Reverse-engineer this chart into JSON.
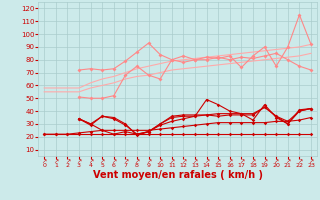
{
  "background_color": "#cceaea",
  "grid_color": "#aacccc",
  "xlabel": "Vent moyen/en rafales ( km/h )",
  "xlabel_color": "#cc0000",
  "xlabel_fontsize": 7,
  "yticks": [
    10,
    20,
    30,
    40,
    50,
    60,
    70,
    80,
    90,
    100,
    110,
    120
  ],
  "xticks": [
    0,
    1,
    2,
    3,
    4,
    5,
    6,
    7,
    8,
    9,
    10,
    11,
    12,
    13,
    14,
    15,
    16,
    17,
    18,
    19,
    20,
    21,
    22,
    23
  ],
  "xlim": [
    -0.5,
    23.5
  ],
  "ylim": [
    5,
    125
  ],
  "series": [
    {
      "x": [
        0,
        1,
        2,
        3,
        4,
        5,
        6,
        7,
        8,
        9,
        10,
        11,
        12,
        13,
        14,
        15,
        16,
        17,
        18,
        19,
        20,
        21,
        22,
        23
      ],
      "y": [
        55,
        55,
        55,
        55,
        58,
        60,
        62,
        65,
        67,
        68,
        70,
        72,
        73,
        74,
        75,
        76,
        77,
        78,
        79,
        80,
        81,
        82,
        83,
        85
      ],
      "color": "#ffaaaa",
      "linewidth": 0.8,
      "marker": null,
      "alpha": 1.0
    },
    {
      "x": [
        0,
        1,
        2,
        3,
        4,
        5,
        6,
        7,
        8,
        9,
        10,
        11,
        12,
        13,
        14,
        15,
        16,
        17,
        18,
        19,
        20,
        21,
        22,
        23
      ],
      "y": [
        58,
        58,
        58,
        58,
        62,
        65,
        67,
        70,
        73,
        75,
        77,
        79,
        80,
        81,
        82,
        83,
        84,
        85,
        86,
        87,
        88,
        89,
        90,
        92
      ],
      "color": "#ffaaaa",
      "linewidth": 0.8,
      "marker": null,
      "alpha": 1.0
    },
    {
      "x": [
        3,
        4,
        5,
        6,
        7,
        8,
        9,
        10,
        11,
        12,
        13,
        14,
        15,
        16,
        17,
        18,
        19,
        20,
        21,
        22,
        23
      ],
      "y": [
        72,
        73,
        72,
        73,
        79,
        86,
        93,
        84,
        80,
        83,
        80,
        82,
        81,
        83,
        74,
        83,
        90,
        75,
        90,
        115,
        92
      ],
      "color": "#ff8888",
      "linewidth": 0.8,
      "marker": "D",
      "markersize": 2,
      "alpha": 1.0
    },
    {
      "x": [
        3,
        4,
        5,
        6,
        7,
        8,
        9,
        10,
        11,
        12,
        13,
        14,
        15,
        16,
        17,
        18,
        19,
        20,
        21,
        22,
        23
      ],
      "y": [
        51,
        50,
        50,
        52,
        68,
        75,
        68,
        65,
        80,
        78,
        80,
        80,
        82,
        80,
        82,
        81,
        83,
        85,
        80,
        75,
        72
      ],
      "color": "#ff8888",
      "linewidth": 0.8,
      "marker": "D",
      "markersize": 2,
      "alpha": 1.0
    },
    {
      "x": [
        0,
        1,
        2,
        3,
        4,
        5,
        6,
        7,
        8,
        9,
        10,
        11,
        12,
        13,
        14,
        15,
        16,
        17,
        18,
        19,
        20,
        21,
        22,
        23
      ],
      "y": [
        22,
        22,
        22,
        22,
        22,
        22,
        22,
        22,
        22,
        22,
        22,
        22,
        22,
        22,
        22,
        22,
        22,
        22,
        22,
        22,
        22,
        22,
        22,
        22
      ],
      "color": "#cc0000",
      "linewidth": 0.8,
      "marker": "D",
      "markersize": 1.8,
      "alpha": 1.0
    },
    {
      "x": [
        0,
        1,
        2,
        3,
        4,
        5,
        6,
        7,
        8,
        9,
        10,
        11,
        12,
        13,
        14,
        15,
        16,
        17,
        18,
        19,
        20,
        21,
        22,
        23
      ],
      "y": [
        22,
        22,
        22,
        23,
        24,
        25,
        25,
        25,
        25,
        25,
        26,
        27,
        28,
        29,
        30,
        31,
        31,
        31,
        31,
        31,
        32,
        32,
        33,
        35
      ],
      "color": "#cc0000",
      "linewidth": 0.8,
      "marker": "D",
      "markersize": 1.8,
      "alpha": 1.0
    },
    {
      "x": [
        3,
        4,
        5,
        6,
        7,
        8,
        9,
        10,
        11,
        12,
        13,
        14,
        15,
        16,
        17,
        18,
        19,
        20,
        21,
        22,
        23
      ],
      "y": [
        34,
        30,
        36,
        35,
        30,
        21,
        24,
        30,
        35,
        36,
        36,
        49,
        45,
        40,
        38,
        33,
        45,
        35,
        30,
        40,
        42
      ],
      "color": "#cc0000",
      "linewidth": 0.8,
      "marker": "D",
      "markersize": 1.8,
      "alpha": 1.0
    },
    {
      "x": [
        3,
        4,
        5,
        6,
        7,
        8,
        9,
        10,
        11,
        12,
        13,
        14,
        15,
        16,
        17,
        18,
        19,
        20,
        21,
        22,
        23
      ],
      "y": [
        34,
        30,
        25,
        22,
        24,
        22,
        24,
        29,
        32,
        34,
        36,
        37,
        36,
        37,
        37,
        37,
        43,
        36,
        32,
        40,
        42
      ],
      "color": "#cc0000",
      "linewidth": 0.8,
      "marker": "D",
      "markersize": 1.8,
      "alpha": 1.0
    },
    {
      "x": [
        3,
        4,
        5,
        6,
        7,
        8,
        9,
        10,
        11,
        12,
        13,
        14,
        15,
        16,
        17,
        18,
        19,
        20,
        21,
        22,
        23
      ],
      "y": [
        34,
        29,
        36,
        34,
        29,
        22,
        24,
        30,
        36,
        37,
        37,
        37,
        38,
        38,
        38,
        38,
        43,
        36,
        30,
        41,
        42
      ],
      "color": "#cc0000",
      "linewidth": 0.8,
      "marker": "D",
      "markersize": 1.8,
      "alpha": 1.0
    }
  ]
}
